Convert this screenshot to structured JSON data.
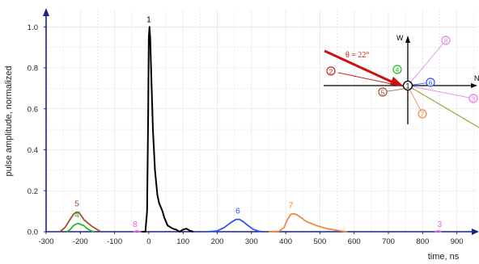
{
  "chart_data": {
    "type": "line",
    "xlabel": "time, ns",
    "ylabel": "pulse amplitude, normalized",
    "xlim": [
      -300,
      960
    ],
    "ylim": [
      0,
      1.08
    ],
    "x_ticks": [
      -300,
      -200,
      -100,
      0,
      100,
      200,
      300,
      400,
      500,
      600,
      700,
      800,
      900
    ],
    "y_ticks": [
      0.0,
      0.2,
      0.4,
      0.6,
      0.8,
      1.0
    ],
    "y_tick_labels": [
      "0.0",
      "0.2",
      "0.4",
      "0.6",
      "0.8",
      "1.0"
    ],
    "grid": true,
    "series": [
      {
        "name": "1",
        "color": "#000000",
        "x": [
          -20,
          -10,
          -5,
          -2,
          0,
          2,
          4,
          8,
          12,
          18,
          25,
          30,
          35,
          40,
          45,
          50,
          55,
          60,
          70,
          80,
          90,
          100,
          110,
          120,
          130
        ],
        "y": [
          0.0,
          0.0,
          0.1,
          0.55,
          0.95,
          1.0,
          0.95,
          0.72,
          0.5,
          0.3,
          0.18,
          0.14,
          0.12,
          0.1,
          0.07,
          0.05,
          0.03,
          0.025,
          0.015,
          0.01,
          0.0,
          0.01,
          0.015,
          0.005,
          0.0
        ]
      },
      {
        "name": "5",
        "color": "#a0522d",
        "x": [
          -260,
          -245,
          -230,
          -220,
          -212,
          -205,
          -198,
          -190,
          -180,
          -165,
          -150,
          -140
        ],
        "y": [
          0.0,
          0.02,
          0.06,
          0.085,
          0.095,
          0.095,
          0.08,
          0.06,
          0.045,
          0.025,
          0.01,
          0.0
        ]
      },
      {
        "name": "4",
        "color": "#22bb22",
        "x": [
          -240,
          -230,
          -220,
          -212,
          -205,
          -198,
          -190,
          -180,
          -170,
          -160
        ],
        "y": [
          0.0,
          0.01,
          0.03,
          0.038,
          0.04,
          0.035,
          0.03,
          0.015,
          0.005,
          0.0
        ]
      },
      {
        "name": "6",
        "color": "#3355ee",
        "x": [
          170,
          200,
          220,
          240,
          255,
          265,
          275,
          290,
          305,
          320,
          330
        ],
        "y": [
          0.0,
          0.004,
          0.02,
          0.045,
          0.06,
          0.06,
          0.05,
          0.03,
          0.012,
          0.003,
          0.0
        ]
      },
      {
        "name": "7",
        "color": "#ee8844",
        "x": [
          350,
          380,
          395,
          405,
          415,
          425,
          440,
          460,
          490,
          520,
          560,
          580
        ],
        "y": [
          0.0,
          0.002,
          0.02,
          0.06,
          0.085,
          0.088,
          0.075,
          0.05,
          0.03,
          0.015,
          0.004,
          0.0
        ]
      },
      {
        "name": "8",
        "color": "#ee66dd",
        "x": [
          -45,
          -35,
          -25
        ],
        "y": [
          0.0,
          0.004,
          0.0
        ]
      },
      {
        "name": "3",
        "color": "#ee66dd",
        "x": [
          835,
          845,
          855
        ],
        "y": [
          0.0,
          0.004,
          0.0
        ]
      }
    ],
    "peak_labels": [
      {
        "text": "1",
        "x": 0,
        "y": 1.0,
        "color": "#000000"
      },
      {
        "text": "5",
        "x": -210,
        "y": 0.1,
        "color": "#a0522d"
      },
      {
        "text": "4",
        "x": -210,
        "y": 0.045,
        "color": "#22bb22"
      },
      {
        "text": "8",
        "x": -40,
        "y": 0.0,
        "color": "#ee66dd"
      },
      {
        "text": "6",
        "x": 260,
        "y": 0.065,
        "color": "#3355ee"
      },
      {
        "text": "7",
        "x": 415,
        "y": 0.092,
        "color": "#ee8844"
      },
      {
        "text": "3",
        "x": 850,
        "y": 0.0,
        "color": "#ee66dd"
      }
    ],
    "inset": {
      "angle_label": "θ = 22°",
      "axis_w_label": "W",
      "axis_n_label": "N",
      "center_label": "1",
      "markers": [
        {
          "label": "2",
          "color": "#cc2222"
        },
        {
          "label": "3",
          "color": "#ee77dd"
        },
        {
          "label": "4",
          "color": "#22bb22"
        },
        {
          "label": "5",
          "color": "#a0522d"
        },
        {
          "label": "6",
          "color": "#3355ee"
        },
        {
          "label": "7",
          "color": "#ee8844"
        },
        {
          "label": "8",
          "color": "#dd88dd"
        }
      ]
    }
  }
}
